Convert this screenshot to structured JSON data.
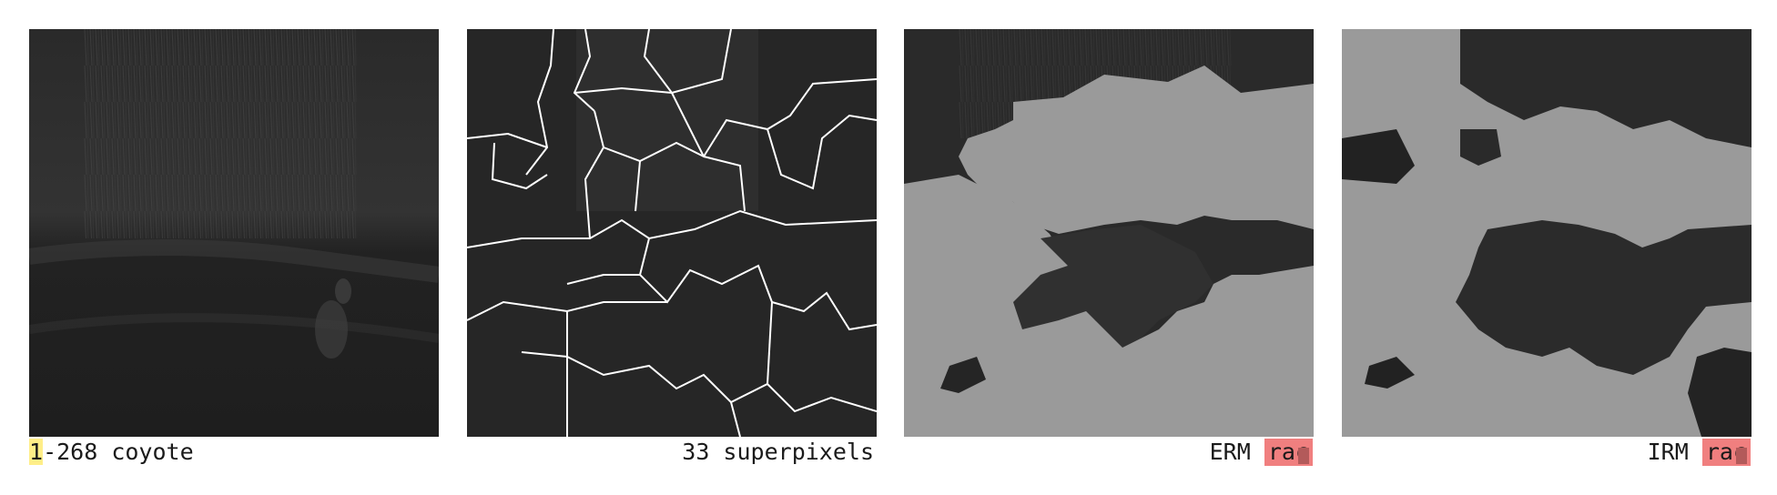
{
  "caption_1": {
    "index": "1",
    "rest": "-268 coyote"
  },
  "caption_2": "33 superpixels",
  "caption_3": {
    "method": "ERM",
    "label": "rac"
  },
  "caption_4": {
    "method": "IRM",
    "label": "rac"
  },
  "colors": {
    "index_highlight": "#ffee88",
    "label_tag": "#f07f7f",
    "mask_overlay": "#9a9a9a",
    "boundaries": "#ffffff"
  }
}
